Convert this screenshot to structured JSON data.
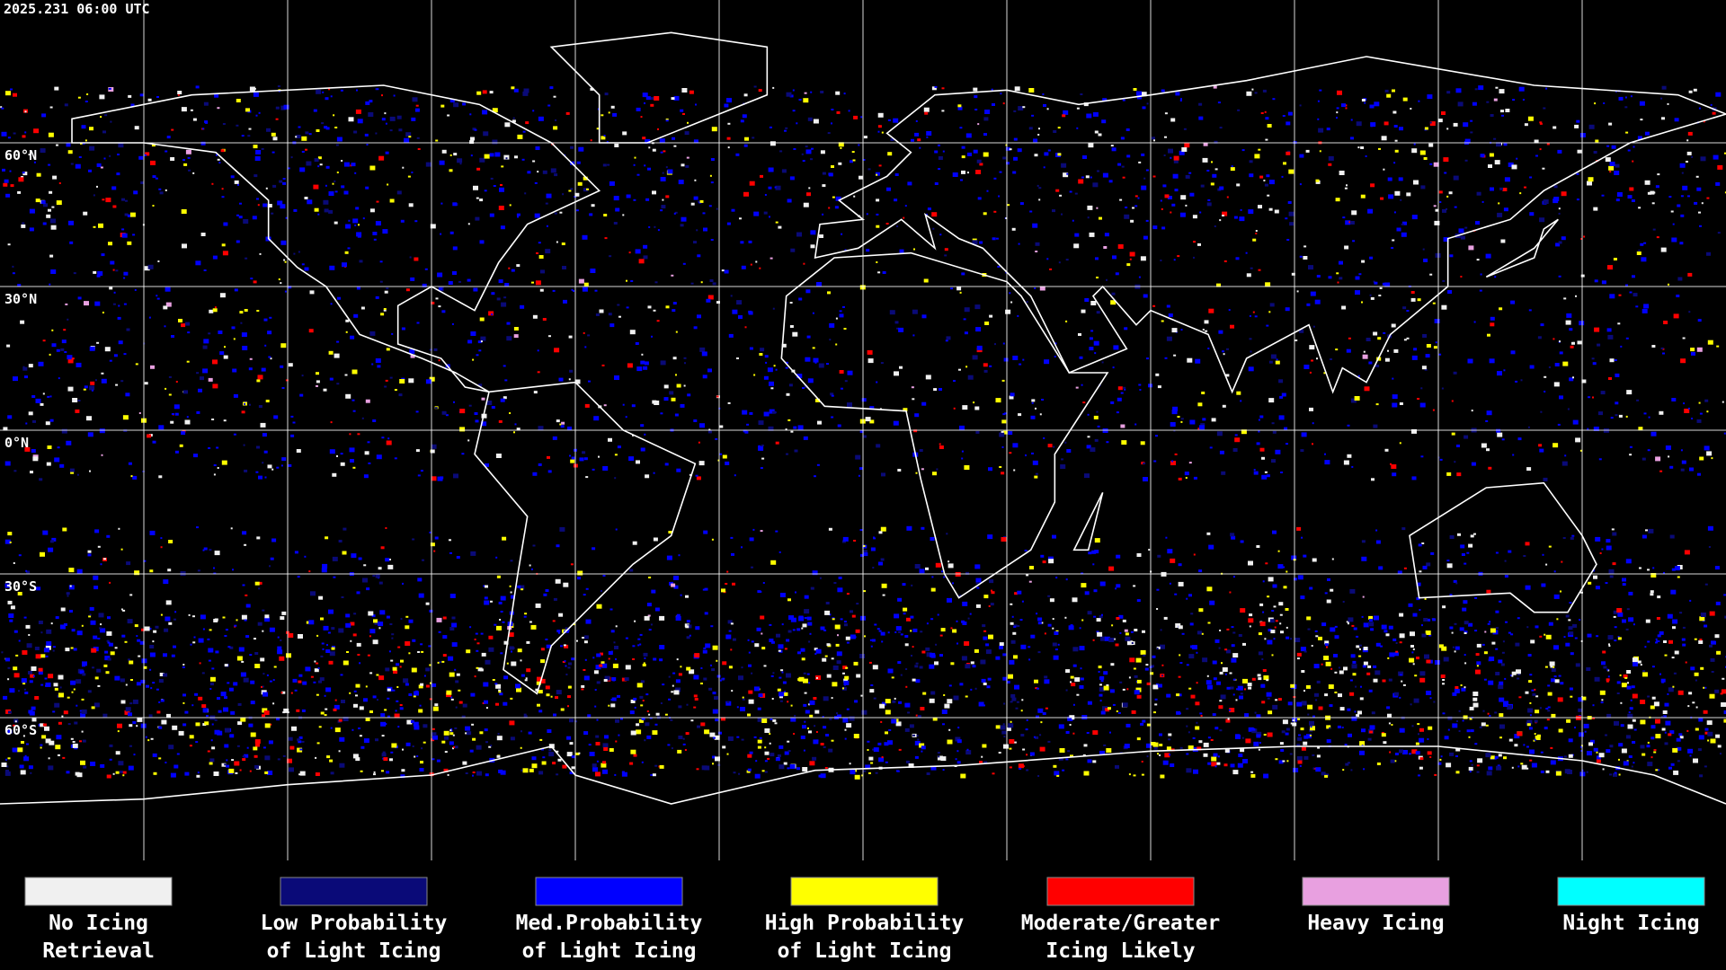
{
  "header": {
    "timestamp": "2025.231 06:00 UTC"
  },
  "map": {
    "latitude_labels": [
      "60°N",
      "30°N",
      "0°N",
      "30°S",
      "60°S"
    ]
  },
  "legend": [
    {
      "lines": [
        "No Icing",
        "Retrieval"
      ],
      "color": "#f0f0f0"
    },
    {
      "lines": [
        "Low Probability",
        "of Light Icing"
      ],
      "color": "#0a0a78"
    },
    {
      "lines": [
        "Med.Probability",
        "of Light Icing"
      ],
      "color": "#0000ff"
    },
    {
      "lines": [
        "High Probability",
        "of Light Icing"
      ],
      "color": "#ffff00"
    },
    {
      "lines": [
        "Moderate/Greater",
        "Icing Likely"
      ],
      "color": "#ff0000"
    },
    {
      "lines": [
        "Heavy Icing"
      ],
      "color": "#e8a0e0"
    },
    {
      "lines": [
        "Night Icing"
      ],
      "color": "#00ffff"
    }
  ]
}
